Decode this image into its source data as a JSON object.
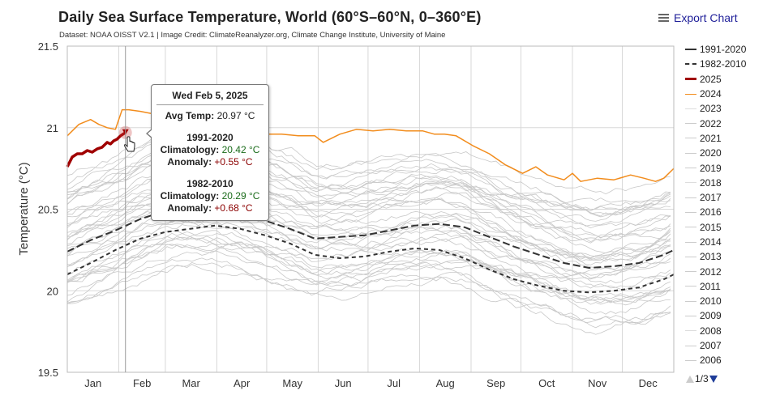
{
  "header": {
    "title": "Daily Sea Surface Temperature, World (60°S–60°N, 0–360°E)",
    "subtitle": "Dataset: NOAA OISST V2.1 | Image Credit: ClimateReanalyzer.org, Climate Change Institute, University of Maine",
    "export_label": "Export Chart",
    "export_icon": "hamburger-menu-icon"
  },
  "tooltip": {
    "date": "Wed Feb 5, 2025",
    "avg_label": "Avg Temp:",
    "avg_value": "20.97 °C",
    "clim1_title": "1991-2020",
    "clim1_label": "Climatology:",
    "clim1_value": "20.42 °C",
    "anom1_label": "Anomaly:",
    "anom1_value": "+0.55 °C",
    "clim2_title": "1982-2010",
    "clim2_label": "Climatology:",
    "clim2_value": "20.29 °C",
    "anom2_label": "Anomaly:",
    "anom2_value": "+0.68 °C"
  },
  "legend": {
    "items": [
      {
        "label": "1991-2020",
        "color": "#333333",
        "style": "solid-thick"
      },
      {
        "label": "1982-2010",
        "color": "#333333",
        "style": "dashed"
      },
      {
        "label": "2025",
        "color": "#a00000",
        "style": "solid-thick"
      },
      {
        "label": "2024",
        "color": "#f28c1c",
        "style": "solid"
      },
      {
        "label": "2023",
        "color": "#dddddd",
        "style": "solid"
      },
      {
        "label": "2022",
        "color": "#cccccc",
        "style": "solid"
      },
      {
        "label": "2021",
        "color": "#cccccc",
        "style": "solid"
      },
      {
        "label": "2020",
        "color": "#cccccc",
        "style": "solid"
      },
      {
        "label": "2019",
        "color": "#cccccc",
        "style": "solid"
      },
      {
        "label": "2018",
        "color": "#dddddd",
        "style": "solid"
      },
      {
        "label": "2017",
        "color": "#cccccc",
        "style": "solid"
      },
      {
        "label": "2016",
        "color": "#cccccc",
        "style": "solid"
      },
      {
        "label": "2015",
        "color": "#cccccc",
        "style": "solid"
      },
      {
        "label": "2014",
        "color": "#cccccc",
        "style": "solid"
      },
      {
        "label": "2013",
        "color": "#cccccc",
        "style": "solid"
      },
      {
        "label": "2012",
        "color": "#cccccc",
        "style": "solid"
      },
      {
        "label": "2011",
        "color": "#cccccc",
        "style": "solid"
      },
      {
        "label": "2010",
        "color": "#cccccc",
        "style": "solid"
      },
      {
        "label": "2009",
        "color": "#cccccc",
        "style": "solid"
      },
      {
        "label": "2008",
        "color": "#dddddd",
        "style": "solid"
      },
      {
        "label": "2007",
        "color": "#cccccc",
        "style": "solid"
      },
      {
        "label": "2006",
        "color": "#cccccc",
        "style": "solid"
      }
    ],
    "page": "1/3"
  },
  "chart_data": {
    "type": "line",
    "title": "Daily Sea Surface Temperature, World (60°S–60°N, 0–360°E)",
    "xlabel": "",
    "ylabel": "Temperature (°C)",
    "ylim": [
      19.5,
      21.5
    ],
    "yticks": [
      19.5,
      20,
      20.5,
      21,
      21.5
    ],
    "ytick_labels": [
      "19.5",
      "20",
      "20.5",
      "21",
      "21.5"
    ],
    "xlim_day_of_year": [
      1,
      366
    ],
    "month_starts": [
      1,
      32,
      60,
      91,
      121,
      152,
      182,
      213,
      244,
      274,
      305,
      335,
      366
    ],
    "month_labels": [
      "Jan",
      "Feb",
      "Mar",
      "Apr",
      "May",
      "Jun",
      "Jul",
      "Aug",
      "Sep",
      "Oct",
      "Nov",
      "Dec"
    ],
    "grid": true,
    "legend_position": "right",
    "crosshair_day": 36,
    "highlight_point": {
      "series": "2025",
      "day": 36,
      "value": 20.97
    },
    "series": [
      {
        "name": "1991-2020",
        "color": "#333333",
        "dash": "long",
        "x": [
          1,
          15,
          30,
          45,
          60,
          75,
          90,
          105,
          120,
          135,
          150,
          165,
          180,
          195,
          210,
          225,
          240,
          255,
          270,
          285,
          300,
          315,
          330,
          345,
          360,
          366
        ],
        "values": [
          20.24,
          20.31,
          20.37,
          20.44,
          20.49,
          20.51,
          20.51,
          20.48,
          20.43,
          20.38,
          20.32,
          20.33,
          20.34,
          20.37,
          20.4,
          20.41,
          20.39,
          20.33,
          20.27,
          20.22,
          20.17,
          20.14,
          20.15,
          20.17,
          20.22,
          20.25
        ]
      },
      {
        "name": "1982-2010",
        "color": "#333333",
        "dash": "short",
        "x": [
          1,
          15,
          30,
          45,
          60,
          75,
          90,
          105,
          120,
          135,
          150,
          165,
          180,
          195,
          210,
          225,
          240,
          255,
          270,
          285,
          300,
          315,
          330,
          345,
          360,
          366
        ],
        "values": [
          20.1,
          20.17,
          20.25,
          20.32,
          20.36,
          20.38,
          20.4,
          20.38,
          20.34,
          20.29,
          20.22,
          20.2,
          20.21,
          20.24,
          20.26,
          20.25,
          20.2,
          20.13,
          20.07,
          20.03,
          20.0,
          19.99,
          20.0,
          20.02,
          20.07,
          20.1
        ]
      },
      {
        "name": "2025",
        "color": "#a00000",
        "x": [
          1,
          4,
          7,
          10,
          13,
          16,
          19,
          22,
          25,
          27,
          29,
          31,
          33,
          36
        ],
        "values": [
          20.76,
          20.82,
          20.84,
          20.84,
          20.86,
          20.85,
          20.87,
          20.88,
          20.91,
          20.9,
          20.92,
          20.93,
          20.95,
          20.97
        ]
      },
      {
        "name": "2024",
        "color": "#f28c1c",
        "x": [
          1,
          8,
          15,
          20,
          25,
          30,
          34,
          38,
          45,
          55,
          65,
          75,
          85,
          95,
          105,
          110,
          120,
          130,
          140,
          150,
          155,
          165,
          175,
          185,
          195,
          205,
          215,
          222,
          228,
          235,
          245,
          255,
          265,
          275,
          283,
          290,
          300,
          305,
          310,
          320,
          330,
          340,
          348,
          355,
          360,
          366
        ],
        "values": [
          20.95,
          21.02,
          21.05,
          21.02,
          21.0,
          20.99,
          21.11,
          21.11,
          21.1,
          21.08,
          21.06,
          21.08,
          21.09,
          21.06,
          21.05,
          21.0,
          20.96,
          20.96,
          20.95,
          20.95,
          20.91,
          20.96,
          20.99,
          20.98,
          20.99,
          20.98,
          20.98,
          20.96,
          20.96,
          20.95,
          20.89,
          20.84,
          20.77,
          20.72,
          20.76,
          20.71,
          20.68,
          20.72,
          20.67,
          20.69,
          20.68,
          20.71,
          20.69,
          20.67,
          20.69,
          20.75
        ]
      }
    ],
    "background_years_note": "Individual years 1981-2023 drawn as thin light gray lines between about 19.7 and 21.0 °C"
  }
}
